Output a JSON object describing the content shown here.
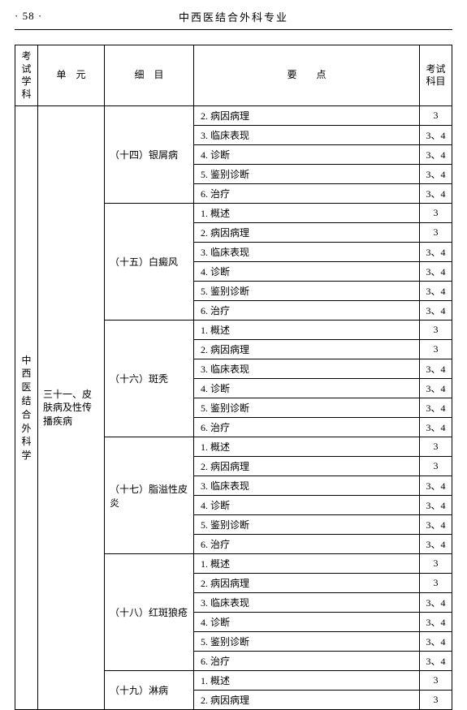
{
  "page_number": "· 58 ·",
  "header_title": "中西医结合外科专业",
  "columns": {
    "subject": "考试\n学科",
    "unit": "单　元",
    "detail": "细　目",
    "point": "要点",
    "exam": "考试\n科目"
  },
  "subject": "中西医结合外科学",
  "unit": "三十一、皮肤病及性传播疾病",
  "sections": [
    {
      "detail": "（十四）银屑病",
      "rows": [
        {
          "point": "2. 病因病理",
          "exam": "3"
        },
        {
          "point": "3. 临床表现",
          "exam": "3、4"
        },
        {
          "point": "4. 诊断",
          "exam": "3、4"
        },
        {
          "point": "5. 鉴别诊断",
          "exam": "3、4"
        },
        {
          "point": "6. 治疗",
          "exam": "3、4"
        }
      ]
    },
    {
      "detail": "（十五）白癜风",
      "rows": [
        {
          "point": "1. 概述",
          "exam": "3"
        },
        {
          "point": "2. 病因病理",
          "exam": "3"
        },
        {
          "point": "3. 临床表现",
          "exam": "3、4"
        },
        {
          "point": "4. 诊断",
          "exam": "3、4"
        },
        {
          "point": "5. 鉴别诊断",
          "exam": "3、4"
        },
        {
          "point": "6. 治疗",
          "exam": "3、4"
        }
      ]
    },
    {
      "detail": "（十六）斑秃",
      "rows": [
        {
          "point": "1. 概述",
          "exam": "3"
        },
        {
          "point": "2. 病因病理",
          "exam": "3"
        },
        {
          "point": "3. 临床表现",
          "exam": "3、4"
        },
        {
          "point": "4. 诊断",
          "exam": "3、4"
        },
        {
          "point": "5. 鉴别诊断",
          "exam": "3、4"
        },
        {
          "point": "6. 治疗",
          "exam": "3、4"
        }
      ]
    },
    {
      "detail": "（十七）脂溢性皮炎",
      "rows": [
        {
          "point": "1. 概述",
          "exam": "3"
        },
        {
          "point": "2. 病因病理",
          "exam": "3"
        },
        {
          "point": "3. 临床表现",
          "exam": "3、4"
        },
        {
          "point": "4. 诊断",
          "exam": "3、4"
        },
        {
          "point": "5. 鉴别诊断",
          "exam": "3、4"
        },
        {
          "point": "6. 治疗",
          "exam": "3、4"
        }
      ]
    },
    {
      "detail": "（十八）红斑狼疮",
      "rows": [
        {
          "point": "1. 概述",
          "exam": "3"
        },
        {
          "point": "2. 病因病理",
          "exam": "3"
        },
        {
          "point": "3. 临床表现",
          "exam": "3、4"
        },
        {
          "point": "4. 诊断",
          "exam": "3、4"
        },
        {
          "point": "5. 鉴别诊断",
          "exam": "3、4"
        },
        {
          "point": "6. 治疗",
          "exam": "3、4"
        }
      ]
    },
    {
      "detail": "（十九）淋病",
      "rows": [
        {
          "point": "1. 概述",
          "exam": "3"
        },
        {
          "point": "2. 病因病理",
          "exam": "3"
        }
      ]
    }
  ]
}
